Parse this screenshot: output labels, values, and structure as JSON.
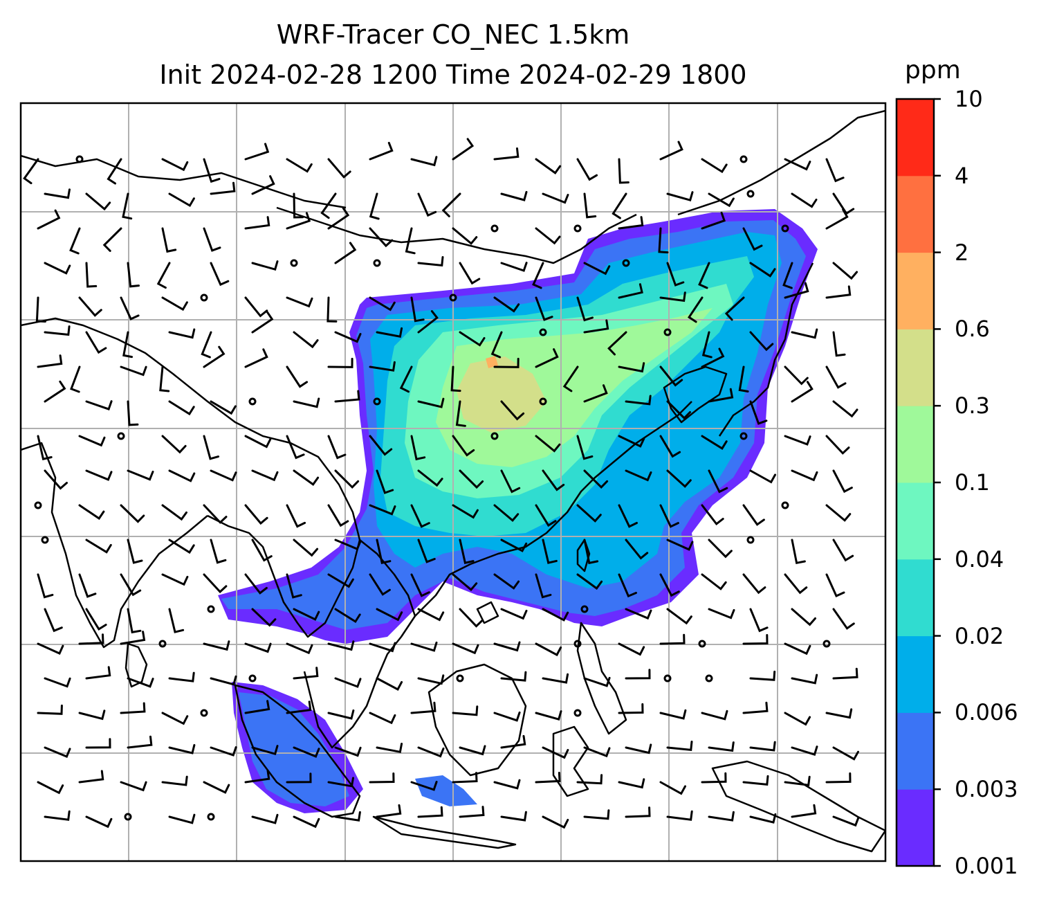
{
  "chart_data": {
    "type": "heatmap",
    "title": "WRF-Tracer CO_NEC 1.5km",
    "subtitle": "Init 2024-02-28 1200 Time 2024-02-29 1800",
    "colorbar": {
      "unit": "ppm",
      "levels": [
        "0.001",
        "0.003",
        "0.006",
        "0.02",
        "0.04",
        "0.1",
        "0.3",
        "0.6",
        "2",
        "4",
        "10"
      ],
      "colors": [
        "#6a2cff",
        "#3b74f5",
        "#00aeea",
        "#30dcd0",
        "#6ef7c0",
        "#9ff99a",
        "#d3df8a",
        "#ffb060",
        "#ff7040",
        "#ff2a18"
      ]
    },
    "grid": true,
    "overlays": [
      "coastlines",
      "country borders",
      "wind barbs"
    ]
  }
}
